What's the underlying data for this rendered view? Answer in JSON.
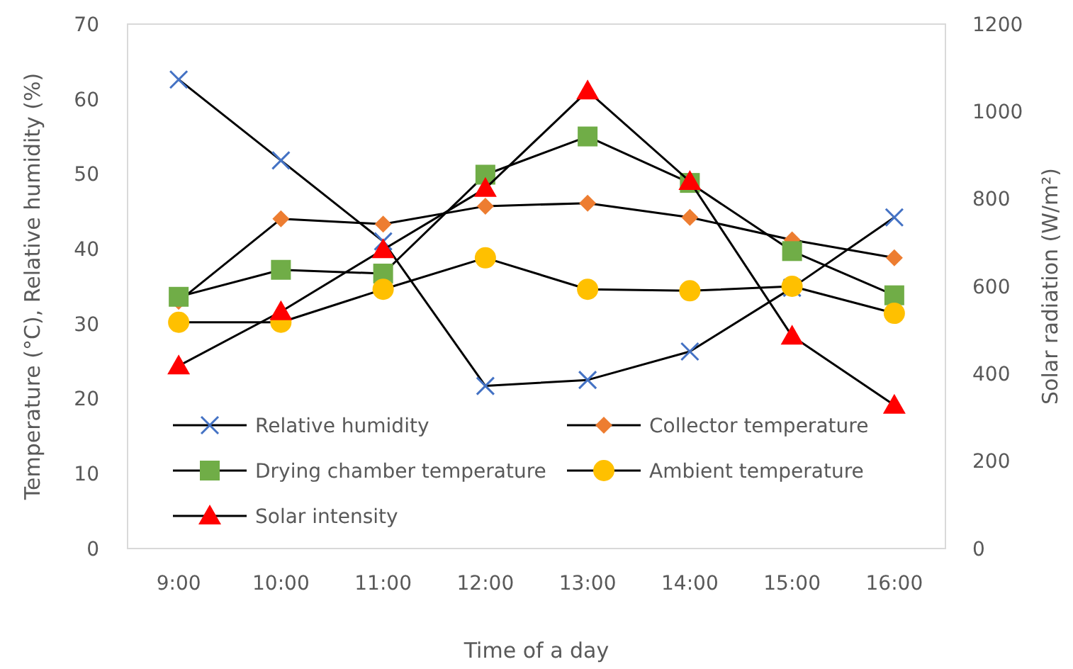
{
  "chart_data": {
    "type": "line",
    "xlabel": "Time of a day",
    "ylabel": "Temperature (°C), Relative humidity (%)",
    "y2label": "Solar radiation (W/m²)",
    "categories": [
      "9:00",
      "10:00",
      "11:00",
      "12:00",
      "13:00",
      "14:00",
      "15:00",
      "16:00"
    ],
    "ylim": [
      0,
      70
    ],
    "yticks": [
      0,
      10,
      20,
      30,
      40,
      50,
      60,
      70
    ],
    "y2lim": [
      0,
      1200
    ],
    "y2ticks": [
      0,
      200,
      400,
      600,
      800,
      1000,
      1200
    ],
    "grid": false,
    "legend": "bottom",
    "series": [
      {
        "name": "Relative humidity",
        "color": "#4472c4",
        "marker": "cross",
        "values": [
          62.6,
          51.8,
          41,
          21.7,
          22.5,
          26.3,
          34.8,
          44.2
        ]
      },
      {
        "name": "Collector temperature",
        "color": "#ed7d31",
        "marker": "diamond",
        "values": [
          33,
          44,
          43.3,
          45.7,
          46.1,
          44.2,
          41.2,
          38.8
        ]
      },
      {
        "name": "Drying chamber temperature",
        "color": "#70ad47",
        "marker": "square",
        "values": [
          33.6,
          37.2,
          36.7,
          49.9,
          55,
          48.8,
          39.7,
          33.8
        ]
      },
      {
        "name": "Ambient temperature",
        "color": "#ffc000",
        "marker": "circle",
        "values": [
          30.2,
          30.2,
          34.6,
          38.8,
          34.6,
          34.4,
          35,
          31.4
        ]
      },
      {
        "name": "Solar intensity",
        "color": "#ff0000",
        "marker": "triangle",
        "axis": "y2",
        "values": [
          418,
          542,
          684,
          824,
          1047,
          840,
          486,
          328
        ]
      }
    ]
  }
}
